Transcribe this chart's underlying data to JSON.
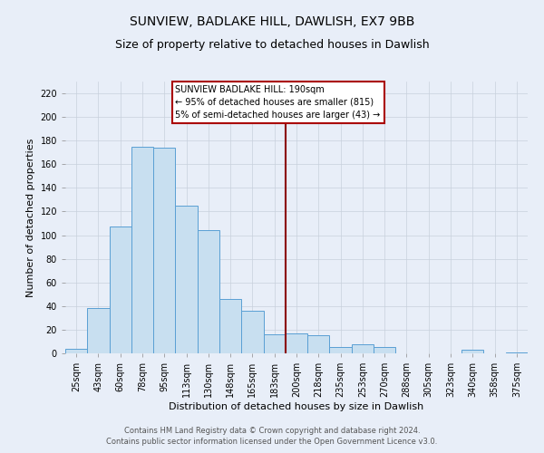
{
  "title": "SUNVIEW, BADLAKE HILL, DAWLISH, EX7 9BB",
  "subtitle": "Size of property relative to detached houses in Dawlish",
  "xlabel": "Distribution of detached houses by size in Dawlish",
  "ylabel": "Number of detached properties",
  "footnote1": "Contains HM Land Registry data © Crown copyright and database right 2024.",
  "footnote2": "Contains public sector information licensed under the Open Government Licence v3.0.",
  "bar_labels": [
    "25sqm",
    "43sqm",
    "60sqm",
    "78sqm",
    "95sqm",
    "113sqm",
    "130sqm",
    "148sqm",
    "165sqm",
    "183sqm",
    "200sqm",
    "218sqm",
    "235sqm",
    "253sqm",
    "270sqm",
    "288sqm",
    "305sqm",
    "323sqm",
    "340sqm",
    "358sqm",
    "375sqm"
  ],
  "bar_heights": [
    4,
    38,
    107,
    175,
    174,
    125,
    104,
    46,
    36,
    16,
    17,
    15,
    5,
    8,
    5,
    0,
    0,
    0,
    3,
    0,
    1
  ],
  "bar_color": "#c8dff0",
  "bar_edge_color": "#5a9fd4",
  "vline_x": 9.5,
  "annotation_title": "SUNVIEW BADLAKE HILL: 190sqm",
  "annotation_line1": "← 95% of detached houses are smaller (815)",
  "annotation_line2": "5% of semi-detached houses are larger (43) →",
  "ylim": [
    0,
    230
  ],
  "yticks": [
    0,
    20,
    40,
    60,
    80,
    100,
    120,
    140,
    160,
    180,
    200,
    220
  ],
  "bg_color": "#e8eef8",
  "grid_color": "#c8d0dc",
  "title_fontsize": 10,
  "subtitle_fontsize": 9,
  "label_fontsize": 8,
  "tick_fontsize": 7,
  "footnote_fontsize": 6
}
